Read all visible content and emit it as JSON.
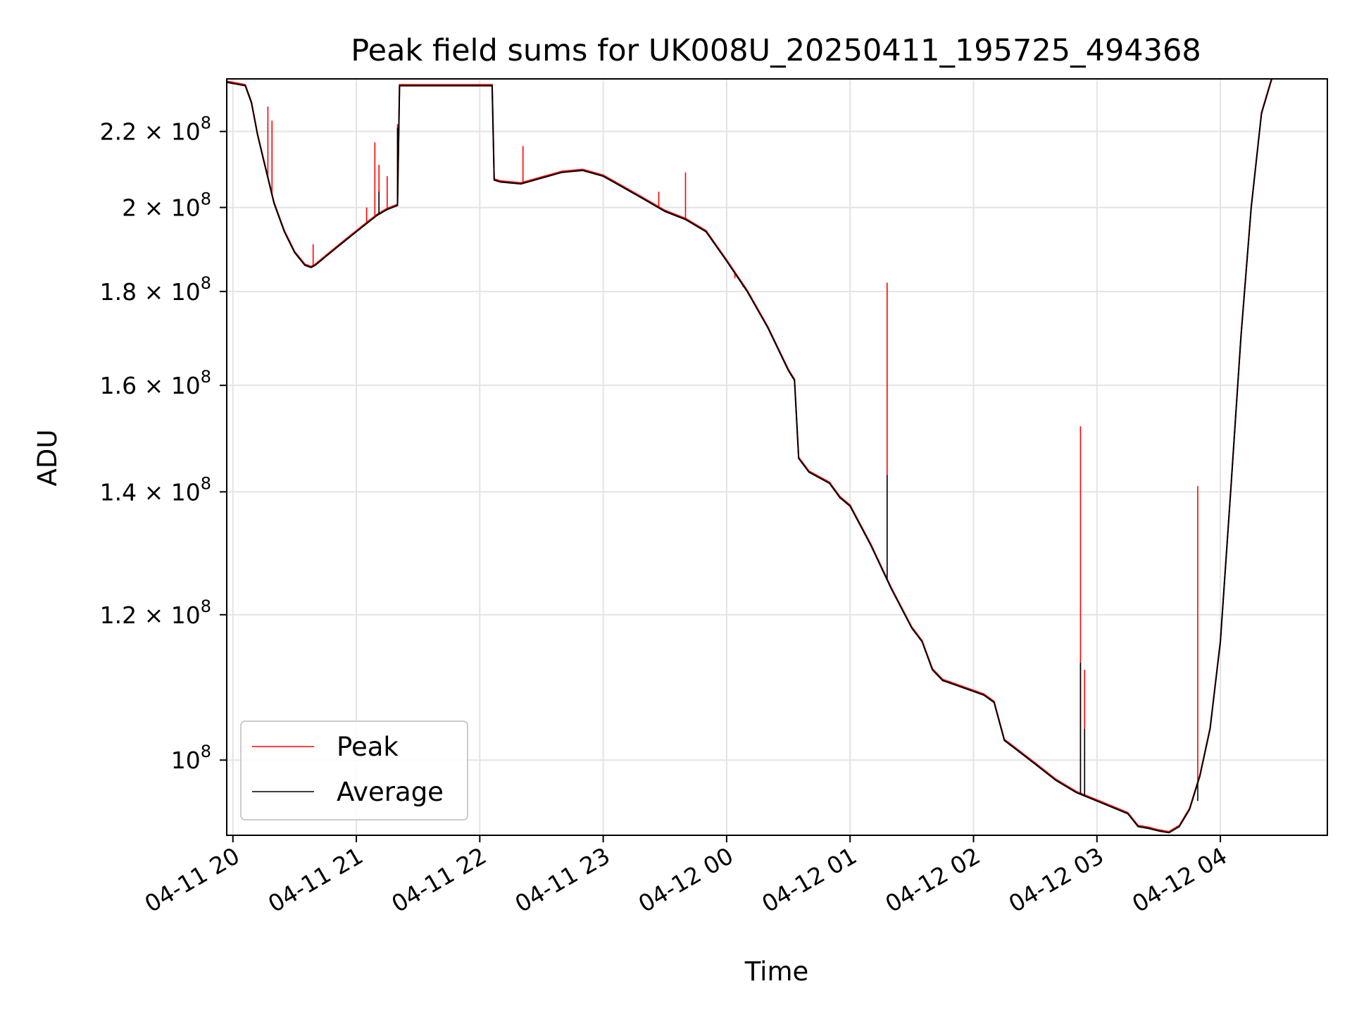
{
  "chart_data": {
    "type": "line",
    "title": "Peak field sums for UK008U_20250411_195725_494368",
    "xlabel": "Time",
    "ylabel": "ADU",
    "yscale": "log",
    "ylim": [
      91000000,
      235000000
    ],
    "xlim": [
      "2025-04-11 19:57",
      "2025-04-12 04:52"
    ],
    "grid": true,
    "legend_position": "lower-left",
    "x_ticks": [
      "04-11 20",
      "04-11 21",
      "04-11 22",
      "04-11 23",
      "04-12 00",
      "04-12 01",
      "04-12 02",
      "04-12 03",
      "04-12 04"
    ],
    "x_tick_times": [
      "2025-04-11 20:00",
      "2025-04-11 21:00",
      "2025-04-11 22:00",
      "2025-04-11 23:00",
      "2025-04-12 00:00",
      "2025-04-12 01:00",
      "2025-04-12 02:00",
      "2025-04-12 03:00",
      "2025-04-12 04:00"
    ],
    "y_ticks": [
      {
        "mantissa": "2.2",
        "exp": "8",
        "value": 220000000
      },
      {
        "mantissa": "2",
        "exp": "8",
        "value": 200000000
      },
      {
        "mantissa": "1.8",
        "exp": "8",
        "value": 180000000
      },
      {
        "mantissa": "1.6",
        "exp": "8",
        "value": 160000000
      },
      {
        "mantissa": "1.4",
        "exp": "8",
        "value": 140000000
      },
      {
        "mantissa": "1.2",
        "exp": "8",
        "value": 120000000
      },
      {
        "mantissa": "",
        "exp": "8",
        "value": 100000000
      }
    ],
    "series": [
      {
        "name": "Peak",
        "color": "#ff0000"
      },
      {
        "name": "Average",
        "color": "#000000"
      }
    ],
    "average": {
      "x": [
        "2025-04-11 19:57",
        "2025-04-11 20:06",
        "2025-04-11 20:09",
        "2025-04-11 20:12",
        "2025-04-11 20:15",
        "2025-04-11 20:20",
        "2025-04-11 20:25",
        "2025-04-11 20:30",
        "2025-04-11 20:35",
        "2025-04-11 20:38",
        "2025-04-11 20:40",
        "2025-04-11 20:45",
        "2025-04-11 20:50",
        "2025-04-11 20:55",
        "2025-04-11 21:00",
        "2025-04-11 21:05",
        "2025-04-11 21:10",
        "2025-04-11 21:15",
        "2025-04-11 21:20",
        "2025-04-11 21:21",
        "2025-04-11 21:22",
        "2025-04-11 21:45",
        "2025-04-11 22:06",
        "2025-04-11 22:07",
        "2025-04-11 22:10",
        "2025-04-11 22:20",
        "2025-04-11 22:30",
        "2025-04-11 22:40",
        "2025-04-11 22:50",
        "2025-04-11 23:00",
        "2025-04-11 23:10",
        "2025-04-11 23:20",
        "2025-04-11 23:30",
        "2025-04-11 23:40",
        "2025-04-11 23:50",
        "2025-04-12 00:00",
        "2025-04-12 00:10",
        "2025-04-12 00:20",
        "2025-04-12 00:30",
        "2025-04-12 00:33",
        "2025-04-12 00:35",
        "2025-04-12 00:40",
        "2025-04-12 00:50",
        "2025-04-12 00:55",
        "2025-04-12 01:00",
        "2025-04-12 01:10",
        "2025-04-12 01:20",
        "2025-04-12 01:30",
        "2025-04-12 01:35",
        "2025-04-12 01:40",
        "2025-04-12 01:45",
        "2025-04-12 01:50",
        "2025-04-12 02:00",
        "2025-04-12 02:05",
        "2025-04-12 02:10",
        "2025-04-12 02:15",
        "2025-04-12 02:20",
        "2025-04-12 02:30",
        "2025-04-12 02:40",
        "2025-04-12 02:50",
        "2025-04-12 03:00",
        "2025-04-12 03:10",
        "2025-04-12 03:15",
        "2025-04-12 03:20",
        "2025-04-12 03:25",
        "2025-04-12 03:30",
        "2025-04-12 03:35",
        "2025-04-12 03:40",
        "2025-04-12 03:45",
        "2025-04-12 03:50",
        "2025-04-12 03:55",
        "2025-04-12 04:00",
        "2025-04-12 04:05",
        "2025-04-12 04:10",
        "2025-04-12 04:15",
        "2025-04-12 04:20",
        "2025-04-12 04:25",
        "2025-04-12 04:30",
        "2025-04-12 04:35",
        "2025-04-12 04:40",
        "2025-04-12 04:45",
        "2025-04-12 04:52"
      ],
      "y": [
        234000000,
        233000000,
        228000000,
        219000000,
        212000000,
        201000000,
        194000000,
        189000000,
        186000000,
        185500000,
        186000000,
        188000000,
        190000000,
        192000000,
        194000000,
        196000000,
        198000000,
        199500000,
        200500000,
        233000000,
        233000000,
        233000000,
        233000000,
        207000000,
        206500000,
        206000000,
        207500000,
        209000000,
        209500000,
        208000000,
        205000000,
        202000000,
        199000000,
        197000000,
        194000000,
        187000000,
        180000000,
        172000000,
        163000000,
        161000000,
        146000000,
        143500000,
        141500000,
        139000000,
        137500000,
        131000000,
        124000000,
        118000000,
        116000000,
        112000000,
        110500000,
        110000000,
        109000000,
        108500000,
        107500000,
        102500000,
        101500000,
        99500000,
        97500000,
        96000000,
        95000000,
        94000000,
        93500000,
        92000000,
        91800000,
        91500000,
        91300000,
        92000000,
        94000000,
        98000000,
        104000000,
        116000000,
        140000000,
        170000000,
        200000000,
        225000000,
        235000000,
        235000000,
        235000000,
        235000000,
        235000000,
        235000000
      ]
    },
    "peak_spikes": [
      {
        "x": "2025-04-11 20:17",
        "y": 227000000
      },
      {
        "x": "2025-04-11 20:19",
        "y": 223000000
      },
      {
        "x": "2025-04-11 20:39",
        "y": 191000000
      },
      {
        "x": "2025-04-11 21:05",
        "y": 200000000
      },
      {
        "x": "2025-04-11 21:09",
        "y": 217000000
      },
      {
        "x": "2025-04-11 21:11",
        "y": 211000000
      },
      {
        "x": "2025-04-11 21:15",
        "y": 208000000
      },
      {
        "x": "2025-04-11 21:20",
        "y": 222000000
      },
      {
        "x": "2025-04-11 22:21",
        "y": 216000000
      },
      {
        "x": "2025-04-11 23:27",
        "y": 204000000
      },
      {
        "x": "2025-04-11 23:40",
        "y": 209000000
      },
      {
        "x": "2025-04-12 00:04",
        "y": 183000000
      },
      {
        "x": "2025-04-12 00:08",
        "y": 181000000
      },
      {
        "x": "2025-04-12 00:11",
        "y": 179000000
      },
      {
        "x": "2025-04-12 01:18",
        "y": 182000000
      },
      {
        "x": "2025-04-12 02:52",
        "y": 152000000
      },
      {
        "x": "2025-04-12 02:54",
        "y": 112000000
      },
      {
        "x": "2025-04-12 03:49",
        "y": 141000000
      }
    ],
    "average_spikes": [
      {
        "x": "2025-04-11 21:11",
        "y": 204000000
      },
      {
        "x": "2025-04-11 21:20",
        "y": 221000000
      },
      {
        "x": "2025-04-12 01:18",
        "y": 143000000
      },
      {
        "x": "2025-04-12 02:52",
        "y": 113000000
      },
      {
        "x": "2025-04-12 02:54",
        "y": 104000000
      },
      {
        "x": "2025-04-12 03:49",
        "y": 95000000
      }
    ]
  }
}
